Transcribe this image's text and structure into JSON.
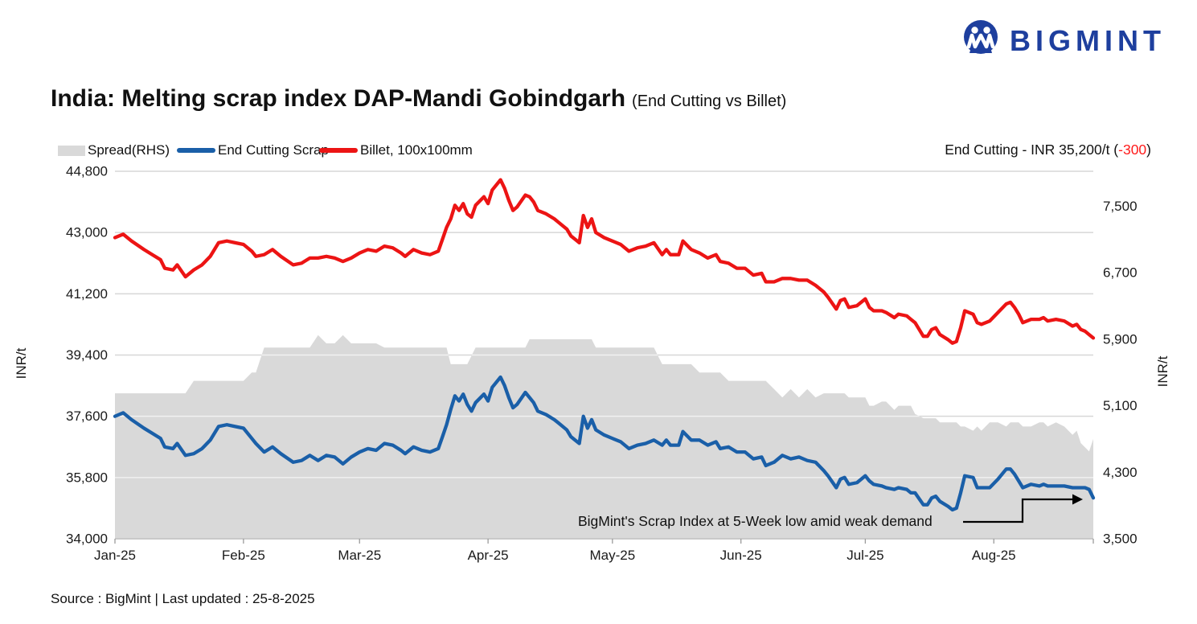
{
  "logo": {
    "text": "BIGMINT",
    "color": "#1E3F9E"
  },
  "title": {
    "main": "India: Melting scrap index DAP-Mandi Gobindgarh",
    "sub": "(End Cutting vs Billet)"
  },
  "legend": {
    "items": [
      {
        "label": "Spread(RHS)",
        "type": "area",
        "color": "#D9D9D9"
      },
      {
        "label": "End Cutting Scrap",
        "type": "line",
        "color": "#1A5FA8"
      },
      {
        "label": "Billet, 100x100mm",
        "type": "line",
        "color": "#EC1414"
      }
    ]
  },
  "callout": {
    "prefix": "End Cutting - INR 35,200/t (",
    "change": "-300",
    "suffix": ")",
    "change_color": "#FF1A1A"
  },
  "annotation": {
    "text": "BigMint's Scrap Index at 5-Week low amid weak demand"
  },
  "source": "Source : BigMint | Last updated : 25-8-2025",
  "chart_data": {
    "type": "line+area",
    "title": "India: Melting scrap index DAP-Mandi Gobindgarh (End Cutting vs Billet)",
    "x_unit": "days since 1 Jan 2025 (series ends 25 Aug 2025)",
    "x_labels": [
      "Jan-25",
      "Feb-25",
      "Mar-25",
      "Apr-25",
      "May-25",
      "Jun-25",
      "Jul-25",
      "Aug-25"
    ],
    "month_start_days": [
      0,
      31,
      59,
      90,
      120,
      151,
      181,
      212
    ],
    "x_max": 236,
    "grid": true,
    "legend_position": "top-left",
    "left_axis": {
      "title": "INR/t",
      "min": 34000,
      "max": 44800,
      "ticks": [
        34000,
        35800,
        37600,
        39400,
        41200,
        43000,
        44800
      ]
    },
    "right_axis": {
      "title": "INR/t",
      "min": 3500,
      "max": 7920,
      "ticks": [
        3500,
        4300,
        5100,
        5900,
        6700,
        7500
      ]
    },
    "days": [
      0,
      2,
      4,
      7,
      9,
      11,
      12,
      14,
      15,
      17,
      19,
      21,
      23,
      25,
      27,
      29,
      31,
      33,
      34,
      36,
      38,
      40,
      43,
      45,
      47,
      49,
      51,
      53,
      55,
      57,
      59,
      61,
      63,
      65,
      67,
      69,
      70,
      72,
      74,
      76,
      78,
      79,
      80,
      81,
      82,
      83,
      84,
      85,
      86,
      87,
      89,
      90,
      91,
      93,
      94,
      95,
      96,
      97,
      99,
      100,
      101,
      102,
      104,
      106,
      107,
      109,
      110,
      111,
      112,
      113,
      114,
      115,
      116,
      118,
      120,
      122,
      124,
      126,
      128,
      130,
      132,
      133,
      134,
      136,
      137,
      139,
      141,
      143,
      145,
      146,
      148,
      150,
      152,
      154,
      156,
      157,
      159,
      161,
      163,
      165,
      167,
      169,
      171,
      172,
      174,
      175,
      176,
      177,
      179,
      181,
      182,
      183,
      185,
      186,
      188,
      189,
      191,
      192,
      193,
      195,
      196,
      197,
      198,
      199,
      201,
      202,
      203,
      204,
      205,
      207,
      208,
      209,
      211,
      213,
      215,
      216,
      217,
      218,
      219,
      221,
      223,
      224,
      225,
      227,
      229,
      231,
      232,
      233,
      234,
      235,
      236
    ],
    "series": [
      {
        "name": "Spread(RHS)",
        "axis": "right",
        "type": "area",
        "color": "#D9D9D9",
        "values": [
          5250,
          5250,
          5250,
          5250,
          5250,
          5250,
          5250,
          5250,
          5250,
          5250,
          5400,
          5400,
          5400,
          5400,
          5400,
          5400,
          5400,
          5500,
          5500,
          5800,
          5800,
          5800,
          5800,
          5800,
          5800,
          5950,
          5850,
          5850,
          5950,
          5850,
          5850,
          5850,
          5850,
          5800,
          5800,
          5800,
          5800,
          5800,
          5800,
          5800,
          5800,
          5800,
          5800,
          5600,
          5600,
          5600,
          5600,
          5600,
          5700,
          5800,
          5800,
          5800,
          5800,
          5800,
          5800,
          5800,
          5800,
          5800,
          5800,
          5900,
          5900,
          5900,
          5900,
          5900,
          5900,
          5900,
          5900,
          5900,
          5900,
          5900,
          5900,
          5900,
          5800,
          5800,
          5800,
          5800,
          5800,
          5800,
          5800,
          5800,
          5600,
          5600,
          5600,
          5600,
          5600,
          5600,
          5500,
          5500,
          5500,
          5500,
          5400,
          5400,
          5400,
          5400,
          5400,
          5400,
          5300,
          5200,
          5300,
          5200,
          5300,
          5200,
          5250,
          5250,
          5250,
          5250,
          5250,
          5200,
          5200,
          5200,
          5100,
          5100,
          5150,
          5150,
          5050,
          5100,
          5100,
          5100,
          5000,
          4950,
          4950,
          4950,
          4950,
          4900,
          4900,
          4900,
          4900,
          4850,
          4850,
          4800,
          4850,
          4800,
          4900,
          4900,
          4850,
          4900,
          4900,
          4900,
          4850,
          4850,
          4900,
          4900,
          4850,
          4900,
          4850,
          4750,
          4800,
          4650,
          4600,
          4550,
          4700
        ]
      },
      {
        "name": "End Cutting Scrap",
        "axis": "left",
        "type": "line",
        "color": "#1A5FA8",
        "values": [
          37600,
          37700,
          37500,
          37250,
          37100,
          36950,
          36700,
          36650,
          36800,
          36450,
          36500,
          36650,
          36900,
          37300,
          37350,
          37300,
          37250,
          36950,
          36800,
          36550,
          36700,
          36500,
          36250,
          36300,
          36450,
          36300,
          36450,
          36400,
          36200,
          36400,
          36550,
          36650,
          36600,
          36800,
          36750,
          36600,
          36500,
          36700,
          36600,
          36550,
          36650,
          37000,
          37350,
          37800,
          38200,
          38050,
          38250,
          37950,
          37750,
          38000,
          38250,
          38050,
          38450,
          38750,
          38500,
          38150,
          37850,
          37950,
          38300,
          38150,
          38000,
          37750,
          37650,
          37500,
          37400,
          37200,
          37000,
          36900,
          36800,
          37600,
          37250,
          37500,
          37200,
          37050,
          36950,
          36850,
          36650,
          36750,
          36800,
          36900,
          36750,
          36900,
          36750,
          36750,
          37150,
          36900,
          36900,
          36750,
          36850,
          36650,
          36700,
          36550,
          36550,
          36350,
          36400,
          36150,
          36250,
          36450,
          36350,
          36400,
          36300,
          36250,
          36000,
          35850,
          35500,
          35750,
          35800,
          35600,
          35650,
          35850,
          35700,
          35600,
          35550,
          35500,
          35450,
          35500,
          35450,
          35350,
          35350,
          35000,
          35000,
          35200,
          35250,
          35100,
          34950,
          34850,
          34900,
          35350,
          35850,
          35800,
          35500,
          35500,
          35500,
          35750,
          36050,
          36050,
          35900,
          35700,
          35500,
          35600,
          35550,
          35600,
          35550,
          35550,
          35550,
          35500,
          35500,
          35500,
          35500,
          35450,
          35200
        ]
      },
      {
        "name": "Billet, 100x100mm",
        "axis": "left",
        "type": "line",
        "color": "#EC1414",
        "values": [
          42850,
          42950,
          42750,
          42500,
          42350,
          42200,
          41950,
          41900,
          42050,
          41700,
          41900,
          42050,
          42300,
          42700,
          42750,
          42700,
          42650,
          42450,
          42300,
          42350,
          42500,
          42300,
          42050,
          42100,
          42250,
          42250,
          42300,
          42250,
          42150,
          42250,
          42400,
          42500,
          42450,
          42600,
          42550,
          42400,
          42300,
          42500,
          42400,
          42350,
          42450,
          42800,
          43150,
          43400,
          43800,
          43650,
          43850,
          43550,
          43450,
          43800,
          44050,
          43850,
          44250,
          44550,
          44300,
          43950,
          43650,
          43750,
          44100,
          44050,
          43900,
          43650,
          43550,
          43400,
          43300,
          43100,
          42900,
          42800,
          42700,
          43500,
          43150,
          43400,
          43000,
          42850,
          42750,
          42650,
          42450,
          42550,
          42600,
          42700,
          42350,
          42500,
          42350,
          42350,
          42750,
          42500,
          42400,
          42250,
          42350,
          42150,
          42100,
          41950,
          41950,
          41750,
          41800,
          41550,
          41550,
          41650,
          41650,
          41600,
          41600,
          41450,
          41250,
          41100,
          40750,
          41000,
          41050,
          40800,
          40850,
          41050,
          40800,
          40700,
          40700,
          40650,
          40500,
          40600,
          40550,
          40450,
          40350,
          39950,
          39950,
          40150,
          40200,
          40000,
          39850,
          39750,
          39800,
          40200,
          40700,
          40600,
          40350,
          40300,
          40400,
          40650,
          40900,
          40950,
          40800,
          40600,
          40350,
          40450,
          40450,
          40500,
          40400,
          40450,
          40400,
          40250,
          40300,
          40150,
          40100,
          40000,
          39900
        ]
      }
    ]
  }
}
